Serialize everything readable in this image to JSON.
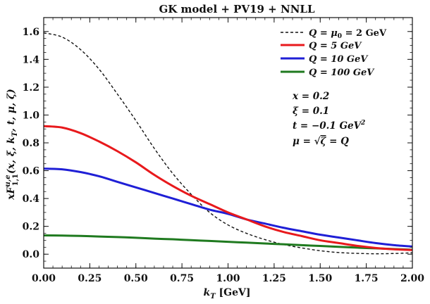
{
  "chart_data": {
    "type": "line",
    "title": "GK model + PV19 + NNLL",
    "xlabel": "k_T [GeV]",
    "xlabel_main": "k",
    "xlabel_sub": "T",
    "xlabel_unit": " [GeV]",
    "ylabel": "xF_{1,1}^{u,e}(x, ξ, k_T, t, μ, ζ)",
    "ylabel_main": "xF",
    "ylabel_sup": "u,e",
    "ylabel_sub": "1,1",
    "ylabel_args_main": "(x, ξ, k",
    "ylabel_args_sub": "T",
    "ylabel_args_rest": ", t, μ, ζ)",
    "xlim": [
      0,
      2
    ],
    "ylim": [
      -0.1,
      1.7
    ],
    "xticks": [
      0.0,
      0.25,
      0.5,
      0.75,
      1.0,
      1.25,
      1.5,
      1.75,
      2.0
    ],
    "xtick_labels": [
      "0.00",
      "0.25",
      "0.50",
      "0.75",
      "1.00",
      "1.25",
      "1.50",
      "1.75",
      "2.00"
    ],
    "yticks": [
      0.0,
      0.2,
      0.4,
      0.6,
      0.8,
      1.0,
      1.2,
      1.4,
      1.6
    ],
    "ytick_labels": [
      "0.0",
      "0.2",
      "0.4",
      "0.6",
      "0.8",
      "1.0",
      "1.2",
      "1.4",
      "1.6"
    ],
    "x": [
      0.0,
      0.1,
      0.2,
      0.3,
      0.4,
      0.5,
      0.6,
      0.7,
      0.8,
      0.9,
      1.0,
      1.1,
      1.2,
      1.3,
      1.4,
      1.5,
      1.6,
      1.7,
      1.8,
      1.9,
      2.0
    ],
    "series": [
      {
        "name": "Q = μ0 = 2 GeV",
        "legend_main": "Q = μ",
        "legend_sub": "0",
        "legend_rest": " = 2 GeV",
        "color": "#111111",
        "dash": "4,3",
        "width": 1.4,
        "values": [
          1.59,
          1.56,
          1.47,
          1.33,
          1.15,
          0.96,
          0.76,
          0.58,
          0.43,
          0.3,
          0.21,
          0.15,
          0.105,
          0.07,
          0.045,
          0.025,
          0.012,
          0.006,
          0.003,
          0.005,
          0.01
        ]
      },
      {
        "name": "Q = 5 GeV",
        "legend_main": "Q = 5 GeV",
        "color": "#e8191c",
        "width": 3,
        "values": [
          0.92,
          0.91,
          0.87,
          0.81,
          0.74,
          0.66,
          0.57,
          0.49,
          0.42,
          0.36,
          0.3,
          0.25,
          0.2,
          0.16,
          0.13,
          0.1,
          0.08,
          0.06,
          0.045,
          0.035,
          0.03
        ]
      },
      {
        "name": "Q = 10 GeV",
        "legend_main": "Q = 10 GeV",
        "color": "#1f1fd6",
        "width": 3,
        "values": [
          0.615,
          0.61,
          0.59,
          0.56,
          0.52,
          0.48,
          0.44,
          0.4,
          0.36,
          0.32,
          0.29,
          0.25,
          0.22,
          0.19,
          0.165,
          0.14,
          0.12,
          0.1,
          0.08,
          0.065,
          0.055
        ]
      },
      {
        "name": "Q = 100 GeV",
        "legend_main": "Q = 100 GeV",
        "color": "#1f7a1f",
        "width": 3,
        "values": [
          0.135,
          0.134,
          0.131,
          0.127,
          0.123,
          0.118,
          0.112,
          0.107,
          0.101,
          0.095,
          0.089,
          0.083,
          0.077,
          0.071,
          0.065,
          0.059,
          0.053,
          0.047,
          0.042,
          0.037,
          0.032
        ]
      }
    ],
    "legend_position": "top-right",
    "annotations": [
      {
        "label": "x = 0.2"
      },
      {
        "label": "ξ = 0.1"
      },
      {
        "label": "t = −0.1 GeV²",
        "main": "t = −0.1 GeV",
        "sup": "2"
      },
      {
        "label": "μ = √ζ = Q",
        "main": "μ = ",
        "root": "√",
        "radicand": "ζ",
        "rest": " = Q"
      }
    ]
  }
}
